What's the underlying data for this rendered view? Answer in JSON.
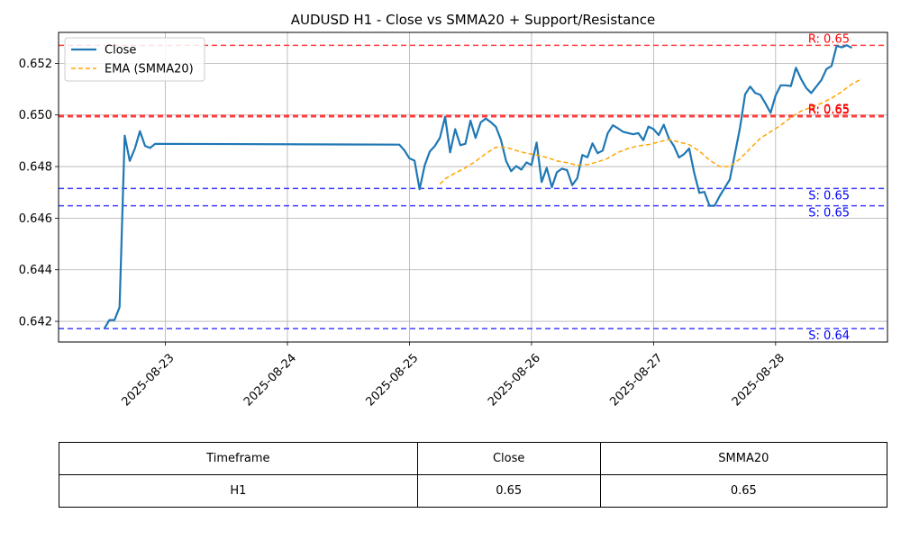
{
  "chart_data": {
    "type": "line",
    "title": "AUDUSD H1 - Close vs SMMA20 + Support/Resistance",
    "xlabel": "",
    "ylabel": "",
    "x_range": [
      "2025-08-22T03:00",
      "2025-08-28T22:00"
    ],
    "ylim": [
      0.6412,
      0.6532
    ],
    "x_ticks": [
      "2025-08-23",
      "2025-08-24",
      "2025-08-25",
      "2025-08-26",
      "2025-08-27",
      "2025-08-28"
    ],
    "y_ticks": [
      "0.642",
      "0.644",
      "0.646",
      "0.648",
      "0.650",
      "0.652"
    ],
    "grid": true,
    "legend_position": "top-left",
    "series": [
      {
        "name": "Close",
        "color": "#1f77b4",
        "points": [
          [
            "2025-08-22T12:00",
            0.64172
          ],
          [
            "2025-08-22T13:00",
            0.64205
          ],
          [
            "2025-08-22T14:00",
            0.64205
          ],
          [
            "2025-08-22T15:00",
            0.64255
          ],
          [
            "2025-08-22T16:00",
            0.6492
          ],
          [
            "2025-08-22T17:00",
            0.64822
          ],
          [
            "2025-08-22T18:00",
            0.6487
          ],
          [
            "2025-08-22T19:00",
            0.64937
          ],
          [
            "2025-08-22T20:00",
            0.6488
          ],
          [
            "2025-08-22T21:00",
            0.64872
          ],
          [
            "2025-08-22T22:00",
            0.64888
          ],
          [
            "2025-08-24T22:00",
            0.64885
          ],
          [
            "2025-08-24T23:00",
            0.64863
          ],
          [
            "2025-08-25T00:00",
            0.64832
          ],
          [
            "2025-08-25T01:00",
            0.64823
          ],
          [
            "2025-08-25T02:00",
            0.64712
          ],
          [
            "2025-08-25T03:00",
            0.64805
          ],
          [
            "2025-08-25T04:00",
            0.64858
          ],
          [
            "2025-08-25T05:00",
            0.6488
          ],
          [
            "2025-08-25T06:00",
            0.64912
          ],
          [
            "2025-08-25T07:00",
            0.64993
          ],
          [
            "2025-08-25T08:00",
            0.64855
          ],
          [
            "2025-08-25T09:00",
            0.64945
          ],
          [
            "2025-08-25T10:00",
            0.64883
          ],
          [
            "2025-08-25T11:00",
            0.64888
          ],
          [
            "2025-08-25T12:00",
            0.64978
          ],
          [
            "2025-08-25T13:00",
            0.64911
          ],
          [
            "2025-08-25T14:00",
            0.64971
          ],
          [
            "2025-08-25T15:00",
            0.64986
          ],
          [
            "2025-08-25T16:00",
            0.64972
          ],
          [
            "2025-08-25T17:00",
            0.64954
          ],
          [
            "2025-08-25T18:00",
            0.64903
          ],
          [
            "2025-08-25T19:00",
            0.64822
          ],
          [
            "2025-08-25T20:00",
            0.64782
          ],
          [
            "2025-08-25T21:00",
            0.64802
          ],
          [
            "2025-08-25T22:00",
            0.64788
          ],
          [
            "2025-08-25T23:00",
            0.64816
          ],
          [
            "2025-08-26T00:00",
            0.64806
          ],
          [
            "2025-08-26T01:00",
            0.64893
          ],
          [
            "2025-08-26T02:00",
            0.6474
          ],
          [
            "2025-08-26T03:00",
            0.64795
          ],
          [
            "2025-08-26T04:00",
            0.6472
          ],
          [
            "2025-08-26T05:00",
            0.64778
          ],
          [
            "2025-08-26T06:00",
            0.64792
          ],
          [
            "2025-08-26T07:00",
            0.64786
          ],
          [
            "2025-08-26T08:00",
            0.64728
          ],
          [
            "2025-08-26T09:00",
            0.64755
          ],
          [
            "2025-08-26T10:00",
            0.64845
          ],
          [
            "2025-08-26T11:00",
            0.64836
          ],
          [
            "2025-08-26T12:00",
            0.6489
          ],
          [
            "2025-08-26T13:00",
            0.64852
          ],
          [
            "2025-08-26T14:00",
            0.64862
          ],
          [
            "2025-08-26T15:00",
            0.6493
          ],
          [
            "2025-08-26T16:00",
            0.6496
          ],
          [
            "2025-08-26T17:00",
            0.64948
          ],
          [
            "2025-08-26T18:00",
            0.64935
          ],
          [
            "2025-08-26T19:00",
            0.6493
          ],
          [
            "2025-08-26T20:00",
            0.64925
          ],
          [
            "2025-08-26T21:00",
            0.6493
          ],
          [
            "2025-08-26T22:00",
            0.64902
          ],
          [
            "2025-08-26T23:00",
            0.64955
          ],
          [
            "2025-08-27T00:00",
            0.64945
          ],
          [
            "2025-08-27T01:00",
            0.64922
          ],
          [
            "2025-08-27T02:00",
            0.64962
          ],
          [
            "2025-08-27T03:00",
            0.6491
          ],
          [
            "2025-08-27T04:00",
            0.6488
          ],
          [
            "2025-08-27T05:00",
            0.64835
          ],
          [
            "2025-08-27T06:00",
            0.64848
          ],
          [
            "2025-08-27T07:00",
            0.6487
          ],
          [
            "2025-08-27T08:00",
            0.64775
          ],
          [
            "2025-08-27T09:00",
            0.64698
          ],
          [
            "2025-08-27T10:00",
            0.64702
          ],
          [
            "2025-08-27T11:00",
            0.64648
          ],
          [
            "2025-08-27T12:00",
            0.64648
          ],
          [
            "2025-08-27T13:00",
            0.64685
          ],
          [
            "2025-08-27T14:00",
            0.64718
          ],
          [
            "2025-08-27T15:00",
            0.6475
          ],
          [
            "2025-08-27T16:00",
            0.6485
          ],
          [
            "2025-08-27T17:00",
            0.6495
          ],
          [
            "2025-08-27T18:00",
            0.6508
          ],
          [
            "2025-08-27T19:00",
            0.6511
          ],
          [
            "2025-08-27T20:00",
            0.65085
          ],
          [
            "2025-08-27T21:00",
            0.65078
          ],
          [
            "2025-08-27T22:00",
            0.65045
          ],
          [
            "2025-08-27T23:00",
            0.65008
          ],
          [
            "2025-08-28T00:00",
            0.65075
          ],
          [
            "2025-08-28T01:00",
            0.65115
          ],
          [
            "2025-08-28T02:00",
            0.65115
          ],
          [
            "2025-08-28T03:00",
            0.65112
          ],
          [
            "2025-08-28T04:00",
            0.65183
          ],
          [
            "2025-08-28T05:00",
            0.6514
          ],
          [
            "2025-08-28T06:00",
            0.65105
          ],
          [
            "2025-08-28T07:00",
            0.65085
          ],
          [
            "2025-08-28T08:00",
            0.6511
          ],
          [
            "2025-08-28T09:00",
            0.65135
          ],
          [
            "2025-08-28T10:00",
            0.65178
          ],
          [
            "2025-08-28T11:00",
            0.6519
          ],
          [
            "2025-08-28T12:00",
            0.65268
          ],
          [
            "2025-08-28T13:00",
            0.65262
          ],
          [
            "2025-08-28T14:00",
            0.6527
          ],
          [
            "2025-08-28T15:00",
            0.6526
          ]
        ]
      },
      {
        "name": "EMA (SMMA20)",
        "color": "#ffa500",
        "dashed": true,
        "points": [
          [
            "2025-08-25T06:00",
            0.64732
          ],
          [
            "2025-08-25T07:00",
            0.64752
          ],
          [
            "2025-08-25T09:00",
            0.64775
          ],
          [
            "2025-08-25T11:00",
            0.64795
          ],
          [
            "2025-08-25T13:00",
            0.6482
          ],
          [
            "2025-08-25T15:00",
            0.6485
          ],
          [
            "2025-08-25T17:00",
            0.64875
          ],
          [
            "2025-08-25T19:00",
            0.64875
          ],
          [
            "2025-08-25T21:00",
            0.64862
          ],
          [
            "2025-08-25T23:00",
            0.64852
          ],
          [
            "2025-08-26T01:00",
            0.64845
          ],
          [
            "2025-08-26T03:00",
            0.64835
          ],
          [
            "2025-08-26T05:00",
            0.64822
          ],
          [
            "2025-08-26T07:00",
            0.64815
          ],
          [
            "2025-08-26T09:00",
            0.64805
          ],
          [
            "2025-08-26T11:00",
            0.64808
          ],
          [
            "2025-08-26T13:00",
            0.64818
          ],
          [
            "2025-08-26T15:00",
            0.64832
          ],
          [
            "2025-08-26T17:00",
            0.64855
          ],
          [
            "2025-08-26T19:00",
            0.6487
          ],
          [
            "2025-08-26T21:00",
            0.6488
          ],
          [
            "2025-08-26T23:00",
            0.64885
          ],
          [
            "2025-08-27T01:00",
            0.64895
          ],
          [
            "2025-08-27T03:00",
            0.64905
          ],
          [
            "2025-08-27T05:00",
            0.64895
          ],
          [
            "2025-08-27T07:00",
            0.64885
          ],
          [
            "2025-08-27T09:00",
            0.6486
          ],
          [
            "2025-08-27T11:00",
            0.64825
          ],
          [
            "2025-08-27T13:00",
            0.648
          ],
          [
            "2025-08-27T15:00",
            0.648
          ],
          [
            "2025-08-27T17:00",
            0.6483
          ],
          [
            "2025-08-27T19:00",
            0.6487
          ],
          [
            "2025-08-27T21:00",
            0.6491
          ],
          [
            "2025-08-27T23:00",
            0.64935
          ],
          [
            "2025-08-28T01:00",
            0.6496
          ],
          [
            "2025-08-28T03:00",
            0.6499
          ],
          [
            "2025-08-28T05:00",
            0.65015
          ],
          [
            "2025-08-28T07:00",
            0.6503
          ],
          [
            "2025-08-28T09:00",
            0.65045
          ],
          [
            "2025-08-28T11:00",
            0.65065
          ],
          [
            "2025-08-28T13:00",
            0.6509
          ],
          [
            "2025-08-28T15:00",
            0.6512
          ],
          [
            "2025-08-28T17:00",
            0.6514
          ]
        ]
      }
    ],
    "levels": [
      {
        "type": "resistance",
        "value": 0.6527,
        "label": "R: 0.65",
        "color": "#ff0000"
      },
      {
        "type": "resistance",
        "value": 0.64998,
        "label": "R: 0.65",
        "color": "#ff0000"
      },
      {
        "type": "resistance",
        "value": 0.64993,
        "label": "R: 0.65",
        "color": "#ff0000"
      },
      {
        "type": "support",
        "value": 0.64715,
        "label": "S: 0.65",
        "color": "#0000ff"
      },
      {
        "type": "support",
        "value": 0.64648,
        "label": "S: 0.65",
        "color": "#0000ff"
      },
      {
        "type": "support",
        "value": 0.64172,
        "label": "S: 0.64",
        "color": "#0000ff"
      }
    ]
  },
  "table": {
    "headers": [
      "Timeframe",
      "Close",
      "SMMA20"
    ],
    "row": [
      "H1",
      "0.65",
      "0.65"
    ]
  }
}
